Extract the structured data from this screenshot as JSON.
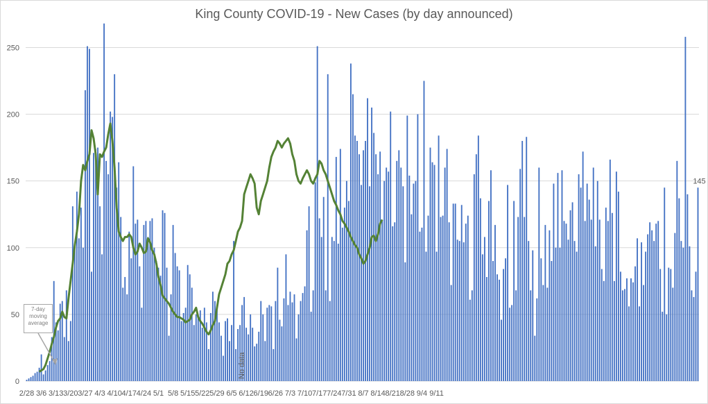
{
  "chart_data": {
    "type": "bar",
    "title": "King County COVID-19 - New Cases (by day announced)",
    "xlabel": "",
    "ylabel": "",
    "ylim": [
      0,
      270
    ],
    "yticks": [
      0,
      50,
      100,
      150,
      200,
      250
    ],
    "grid": true,
    "x_tick_labels": [
      "2/28",
      "3/6",
      "3/13",
      "3/20",
      "3/27",
      "4/3",
      "4/10",
      "4/17",
      "4/24",
      "5/1",
      "5/8",
      "5/15",
      "5/22",
      "5/29",
      "6/5",
      "6/12",
      "6/19",
      "6/26",
      "7/3",
      "7/10",
      "7/17",
      "7/24",
      "7/31",
      "8/7",
      "8/14",
      "8/21",
      "8/28",
      "9/4",
      "9/11"
    ],
    "colors": {
      "bars": "#4472c4",
      "line": "#548235",
      "grid": "#d9d9d9",
      "text": "#595959"
    },
    "series": [
      {
        "name": "New cases",
        "values": [
          1,
          2,
          3,
          4,
          6,
          7,
          10,
          20,
          5,
          8,
          12,
          15,
          33,
          75,
          44,
          38,
          58,
          60,
          33,
          68,
          30,
          45,
          131,
          100,
          142,
          107,
          130,
          100,
          218,
          251,
          249,
          82,
          171,
          174,
          175,
          131,
          95,
          268,
          165,
          155,
          202,
          198,
          230,
          145,
          164,
          123,
          70,
          78,
          65,
          112,
          92,
          161,
          118,
          121,
          86,
          55,
          117,
          120,
          108,
          120,
          122,
          100,
          90,
          85,
          79,
          128,
          126,
          85,
          34,
          65,
          117,
          96,
          86,
          83,
          45,
          51,
          55,
          87,
          80,
          70,
          42,
          50,
          48,
          53,
          40,
          55,
          44,
          24,
          51,
          67,
          60,
          53,
          44,
          34,
          19,
          45,
          47,
          30,
          42,
          105,
          24,
          39,
          42,
          57,
          63,
          40,
          35,
          50,
          40,
          26,
          28,
          37,
          60,
          50,
          30,
          55,
          57,
          56,
          24,
          60,
          85,
          46,
          41,
          62,
          95,
          57,
          67,
          59,
          65,
          32,
          50,
          60,
          66,
          71,
          113,
          131,
          52,
          68,
          149,
          251,
          122,
          108,
          138,
          68,
          230,
          60,
          108,
          105,
          168,
          103,
          174,
          115,
          130,
          150,
          135,
          238,
          215,
          184,
          180,
          170,
          147,
          173,
          180,
          212,
          146,
          205,
          186,
          170,
          155,
          172,
          121,
          150,
          160,
          157,
          202,
          116,
          119,
          165,
          173,
          160,
          146,
          89,
          199,
          154,
          125,
          148,
          150,
          200,
          112,
          115,
          225,
          97,
          124,
          175,
          164,
          162,
          97,
          184,
          123,
          124,
          160,
          174,
          119,
          72,
          133,
          133,
          106,
          105,
          132,
          104,
          118,
          124,
          61,
          68,
          155,
          170,
          184,
          137,
          95,
          108,
          78,
          135,
          158,
          90,
          117,
          80,
          76,
          46,
          84,
          92,
          147,
          55,
          57,
          135,
          68,
          123,
          159,
          180,
          123,
          183,
          105,
          68,
          98,
          34,
          62,
          160,
          92,
          72,
          117,
          70,
          113,
          90,
          148,
          100,
          156,
          100,
          158,
          120,
          118,
          106,
          128,
          134,
          105,
          97,
          155,
          145,
          172,
          120,
          148,
          136,
          121,
          160,
          101,
          150,
          121,
          84,
          75,
          130,
          120,
          166,
          126,
          75,
          157,
          142,
          82,
          68,
          69,
          77,
          56,
          77,
          74,
          86,
          107,
          56,
          104,
          72,
          97,
          110,
          119,
          113,
          105,
          118,
          120,
          84,
          52,
          145,
          50,
          85,
          84,
          70,
          111,
          165,
          137,
          105,
          100,
          258,
          140,
          101,
          68,
          63,
          82,
          145
        ]
      },
      {
        "name": "7-day moving average",
        "type": "line",
        "start_day": 6,
        "values": [
          7,
          8,
          9,
          12,
          17,
          22,
          28,
          33,
          40,
          45,
          47,
          52,
          48,
          47,
          62,
          75,
          88,
          102,
          112,
          125,
          150,
          162,
          158,
          165,
          170,
          188,
          182,
          170,
          140,
          170,
          168,
          172,
          175,
          185,
          193,
          180,
          160,
          130,
          112,
          108,
          105,
          108,
          108,
          110,
          108,
          100,
          95,
          97,
          103,
          100,
          96,
          97,
          107,
          104,
          98,
          95,
          88,
          78,
          72,
          64,
          62,
          60,
          58,
          55,
          52,
          50,
          48,
          48,
          47,
          46,
          44,
          45,
          46,
          50,
          52,
          55,
          48,
          45,
          43,
          40,
          37,
          35,
          38,
          42,
          45,
          55,
          65,
          70,
          75,
          80,
          88,
          90,
          95,
          98,
          105,
          112,
          115,
          120,
          140,
          145,
          150,
          155,
          152,
          148,
          130,
          125,
          135,
          140,
          145,
          150,
          160,
          168,
          172,
          175,
          180,
          178,
          175,
          178,
          180,
          182,
          178,
          170,
          165,
          155,
          150,
          148,
          152,
          155,
          158,
          155,
          150,
          148,
          152,
          155,
          165,
          163,
          158,
          155,
          150,
          145,
          140,
          135,
          132,
          128,
          125,
          120,
          118,
          115,
          112,
          108,
          105,
          102,
          100,
          95,
          92,
          88,
          90,
          95,
          100,
          108,
          109,
          105,
          110,
          118,
          121
        ]
      }
    ],
    "annotations": {
      "end_value_label": "145",
      "callout_text": [
        "7-day",
        "moving",
        "average"
      ],
      "no_data_label": "No data"
    }
  }
}
